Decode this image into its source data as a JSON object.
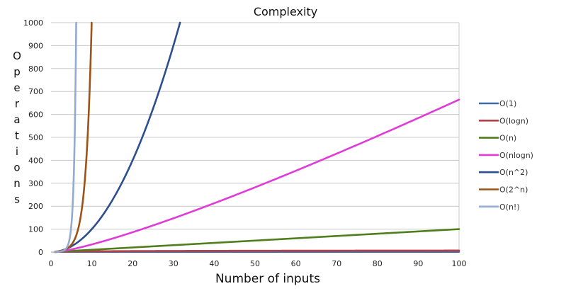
{
  "chart_data": {
    "type": "line",
    "title": "Complexity",
    "xlabel": "Number of inputs",
    "ylabel": "Operations",
    "xlim": [
      0,
      100
    ],
    "ylim": [
      0,
      1000
    ],
    "x_ticks": [
      0,
      10,
      20,
      30,
      40,
      50,
      60,
      70,
      80,
      90,
      100
    ],
    "y_ticks": [
      0,
      100,
      200,
      300,
      400,
      500,
      600,
      700,
      800,
      900,
      1000
    ],
    "grid": "horizontal",
    "legend_position": "right",
    "series": [
      {
        "name": "O(1)",
        "color": "#3f6aa8",
        "function": "constant",
        "points": [
          [
            1,
            1
          ],
          [
            100,
            1
          ]
        ]
      },
      {
        "name": "O(logn)",
        "color": "#b5404a",
        "function": "log2",
        "points": [
          [
            1,
            0
          ],
          [
            10,
            3.3
          ],
          [
            50,
            5.6
          ],
          [
            100,
            6.6
          ]
        ]
      },
      {
        "name": "O(n)",
        "color": "#4f7f1c",
        "function": "linear",
        "points": [
          [
            1,
            1
          ],
          [
            50,
            50
          ],
          [
            100,
            100
          ]
        ]
      },
      {
        "name": "O(nlogn)",
        "color": "#e03bd6",
        "function": "nlog2n",
        "points": [
          [
            1,
            0
          ],
          [
            10,
            33
          ],
          [
            50,
            282
          ],
          [
            100,
            664
          ]
        ]
      },
      {
        "name": "O(n^2)",
        "color": "#2d4e8f",
        "function": "square",
        "points": [
          [
            1,
            1
          ],
          [
            10,
            100
          ],
          [
            20,
            400
          ],
          [
            31.6,
            1000
          ]
        ]
      },
      {
        "name": "O(2^n)",
        "color": "#9c5318",
        "function": "exp2",
        "points": [
          [
            1,
            2
          ],
          [
            5,
            32
          ],
          [
            8,
            256
          ],
          [
            10,
            1024
          ]
        ]
      },
      {
        "name": "O(n!)",
        "color": "#93aad1",
        "function": "factorial",
        "points": [
          [
            1,
            1
          ],
          [
            4,
            24
          ],
          [
            5,
            120
          ],
          [
            6,
            720
          ],
          [
            6.2,
            1000
          ]
        ]
      }
    ]
  }
}
